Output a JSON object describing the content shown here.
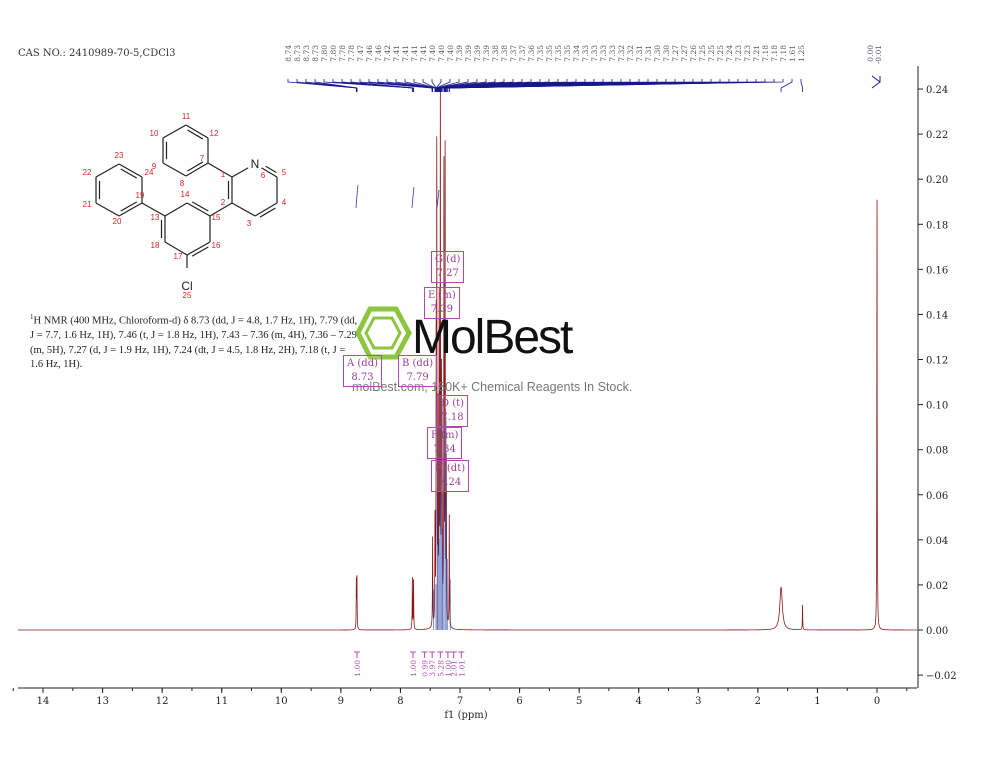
{
  "header": {
    "cas": "CAS NO.: 2410989-70-5,CDCl3"
  },
  "description": {
    "nucleus_sup": "1",
    "text": "H NMR (400 MHz, Chloroform-d) δ 8.73 (dd, J = 4.8, 1.7 Hz, 1H), 7.79 (dd, J = 7.7, 1.6 Hz, 1H), 7.46 (t, J = 1.8 Hz, 1H), 7.43 – 7.36 (m, 4H), 7.36 – 7.29 (m, 5H), 7.27 (d, J = 1.9 Hz, 1H), 7.24 (dt, J = 4.5, 1.8 Hz, 2H), 7.18 (t, J = 1.6 Hz, 1H)."
  },
  "watermark": {
    "logo": "MolBest",
    "subtitle": "molBest.com, 180K+ Chemical Reagents In Stock."
  },
  "structure": {
    "atom_labels": [
      "1",
      "2",
      "3",
      "4",
      "5",
      "6",
      "7",
      "8",
      "9",
      "10",
      "11",
      "12",
      "13",
      "14",
      "15",
      "16",
      "17",
      "18",
      "19",
      "20",
      "21",
      "22",
      "23",
      "24",
      "25"
    ],
    "heteroatoms": {
      "N": "N",
      "Cl": "Cl"
    }
  },
  "chart_data": {
    "type": "line",
    "title": "",
    "xlabel": "f1 (ppm)",
    "ylabel": "",
    "xlim": [
      14.42,
      -0.64
    ],
    "ylim": [
      -0.025,
      0.25
    ],
    "x_reversed": true,
    "x_ticks": [
      14,
      13,
      12,
      11,
      10,
      9,
      8,
      7,
      6,
      5,
      4,
      3,
      2,
      1,
      0
    ],
    "y_ticks": [
      -0.02,
      0.0,
      0.02,
      0.04,
      0.06,
      0.08,
      0.1,
      0.12,
      0.14,
      0.16,
      0.18,
      0.2,
      0.22,
      0.24
    ],
    "y_tick_labels": [
      "−0.02",
      "0.00",
      "0.02",
      "0.04",
      "0.06",
      "0.08",
      "0.10",
      "0.12",
      "0.14",
      "0.16",
      "0.18",
      "0.20",
      "0.22",
      "0.24"
    ],
    "grid": false,
    "colors": {
      "spectrum": "#8b1a1a",
      "peak_fill": "#2a3fa0",
      "peak_labels": "#1a1a8c",
      "multiplet": "#b04ab0"
    },
    "peaks": [
      {
        "ppm": 8.74,
        "height": 0.021
      },
      {
        "ppm": 8.73,
        "height": 0.022
      },
      {
        "ppm": 7.8,
        "height": 0.023
      },
      {
        "ppm": 7.78,
        "height": 0.022
      },
      {
        "ppm": 7.46,
        "height": 0.04
      },
      {
        "ppm": 7.42,
        "height": 0.045
      },
      {
        "ppm": 7.4,
        "height": 0.12
      },
      {
        "ppm": 7.39,
        "height": 0.2
      },
      {
        "ppm": 7.37,
        "height": 0.09
      },
      {
        "ppm": 7.35,
        "height": 0.14
      },
      {
        "ppm": 7.33,
        "height": 0.24
      },
      {
        "ppm": 7.31,
        "height": 0.1
      },
      {
        "ppm": 7.3,
        "height": 0.08
      },
      {
        "ppm": 7.27,
        "height": 0.2
      },
      {
        "ppm": 7.25,
        "height": 0.21
      },
      {
        "ppm": 7.23,
        "height": 0.07
      },
      {
        "ppm": 7.18,
        "height": 0.05
      },
      {
        "ppm": 1.61,
        "height": 0.019,
        "broad": true
      },
      {
        "ppm": 1.25,
        "height": 0.011
      },
      {
        "ppm": 0.0,
        "height": 0.19
      },
      {
        "ppm": -0.01,
        "height": 0.008
      }
    ],
    "peak_labels": [
      "8.74",
      "8.73",
      "8.73",
      "8.73",
      "7.80",
      "7.80",
      "7.78",
      "7.78",
      "7.47",
      "7.46",
      "7.46",
      "7.42",
      "7.41",
      "7.41",
      "7.41",
      "7.41",
      "7.40",
      "7.40",
      "7.40",
      "7.39",
      "7.39",
      "7.39",
      "7.39",
      "7.38",
      "7.38",
      "7.37",
      "7.37",
      "7.36",
      "7.35",
      "7.35",
      "7.35",
      "7.35",
      "7.34",
      "7.33",
      "7.33",
      "7.33",
      "7.33",
      "7.32",
      "7.32",
      "7.31",
      "7.31",
      "7.30",
      "7.30",
      "7.27",
      "7.27",
      "7.26",
      "7.25",
      "7.25",
      "7.25",
      "7.24",
      "7.23",
      "7.23",
      "7.21",
      "7.18",
      "7.18",
      "7.18",
      "1.61",
      "1.25"
    ],
    "tms_labels": [
      "0.00",
      "-0.01"
    ],
    "integrals": [
      {
        "ppm": 8.73,
        "value": "1.00"
      },
      {
        "ppm": 7.79,
        "value": "1.00"
      },
      {
        "ppm": 7.46,
        "value": "0.99"
      },
      {
        "ppm": 7.4,
        "value": "3.97"
      },
      {
        "ppm": 7.33,
        "value": "5.28"
      },
      {
        "ppm": 7.27,
        "value": "1.00"
      },
      {
        "ppm": 7.24,
        "value": "2.01"
      },
      {
        "ppm": 7.18,
        "value": "1.01"
      }
    ],
    "multiplets": [
      {
        "id": "A",
        "mult": "(dd)",
        "shift": "8.73"
      },
      {
        "id": "B",
        "mult": "(dd)",
        "shift": "7.79"
      },
      {
        "id": "G",
        "mult": "(d)",
        "shift": "7.27"
      },
      {
        "id": "E",
        "mult": "(m)",
        "shift": "7.39"
      },
      {
        "id": "D",
        "mult": "(t)",
        "shift": "7.18"
      },
      {
        "id": "F",
        "mult": "(m)",
        "shift": "7.34"
      },
      {
        "id": "H",
        "mult": "(dt)",
        "shift": "7.24"
      }
    ]
  }
}
